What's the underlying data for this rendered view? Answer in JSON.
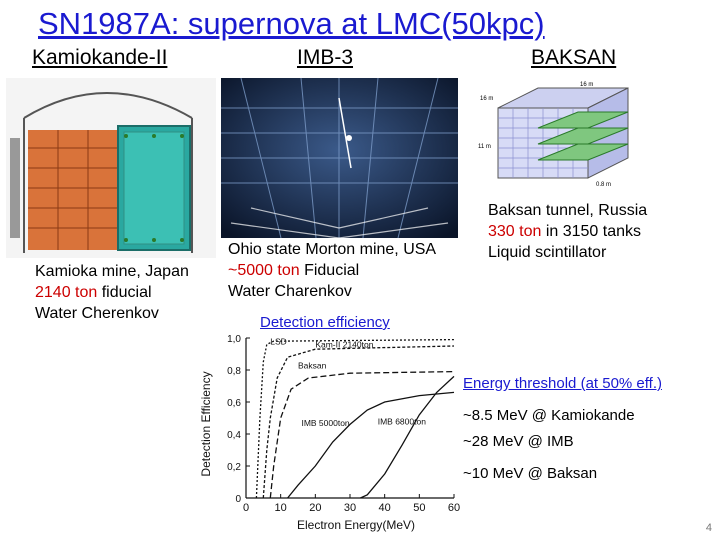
{
  "title": "SN1987A: supernova at LMC(50kpc)",
  "columns": {
    "kam": {
      "heading": "Kamiokande-II",
      "line1": "Kamioka mine, Japan",
      "line2_red": "2140 ton",
      "line2_rest": " fiducial",
      "line3": "Water Cherenkov"
    },
    "imb": {
      "heading": "IMB-3",
      "line1": "Ohio state Morton mine, USA",
      "line2_red": "~5000 ton",
      "line2_rest": " Fiducial",
      "line3": "Water Charenkov"
    },
    "baksan": {
      "heading": "BAKSAN",
      "line1": "Baksan tunnel, Russia",
      "line2_red": "330 ton",
      "line2_rest": " in 3150 tanks",
      "line3": "Liquid scintillator",
      "dims": {
        "top": "16 m",
        "depth": "16 m",
        "height": "11 m",
        "base": "0.8 m"
      }
    }
  },
  "efficiency_heading": "Detection efficiency",
  "threshold": {
    "heading": "Energy threshold (at 50% eff.)",
    "kam": "~8.5 MeV @ Kamiokande",
    "imb": "~28 MeV  @ IMB",
    "baksan": "~10 MeV @ Baksan"
  },
  "page_number": "4",
  "chart_data": {
    "type": "line",
    "title": "",
    "xlabel": "Electron Energy(MeV)",
    "ylabel": "Detection Efficiency",
    "xlim": [
      0,
      60
    ],
    "ylim": [
      0,
      1.0
    ],
    "x_ticks": [
      "0",
      "10",
      "20",
      "30",
      "40",
      "50",
      "60"
    ],
    "y_ticks": [
      "0",
      "0,2",
      "0,4",
      "0,6",
      "0,8",
      "1,0"
    ],
    "series": [
      {
        "name": "LSD",
        "points": [
          [
            3,
            0
          ],
          [
            4,
            0.5
          ],
          [
            5,
            0.85
          ],
          [
            6,
            0.96
          ],
          [
            8,
            0.98
          ],
          [
            60,
            0.99
          ]
        ]
      },
      {
        "name": "Kam-II 2140ton",
        "points": [
          [
            5,
            0
          ],
          [
            6,
            0.3
          ],
          [
            7,
            0.5
          ],
          [
            9,
            0.75
          ],
          [
            12,
            0.88
          ],
          [
            20,
            0.93
          ],
          [
            60,
            0.95
          ]
        ]
      },
      {
        "name": "Baksan",
        "points": [
          [
            7,
            0
          ],
          [
            8,
            0.2
          ],
          [
            10,
            0.5
          ],
          [
            13,
            0.68
          ],
          [
            18,
            0.75
          ],
          [
            30,
            0.78
          ],
          [
            60,
            0.79
          ]
        ]
      },
      {
        "name": "IMB 5000ton",
        "points": [
          [
            12,
            0
          ],
          [
            15,
            0.08
          ],
          [
            20,
            0.2
          ],
          [
            25,
            0.35
          ],
          [
            30,
            0.46
          ],
          [
            35,
            0.55
          ],
          [
            40,
            0.6
          ],
          [
            50,
            0.64
          ],
          [
            60,
            0.66
          ]
        ]
      },
      {
        "name": "IMB 6800ton",
        "points": [
          [
            33,
            0
          ],
          [
            35,
            0.02
          ],
          [
            40,
            0.15
          ],
          [
            45,
            0.33
          ],
          [
            50,
            0.52
          ],
          [
            55,
            0.66
          ],
          [
            60,
            0.76
          ]
        ]
      }
    ]
  },
  "colors": {
    "title": "#1a1ad0",
    "highlight": "#cc0000",
    "plot": "#111111"
  },
  "images": [
    "kamiokande-detector-drawing",
    "imb-detector-photo",
    "baksan-detector-drawing"
  ]
}
